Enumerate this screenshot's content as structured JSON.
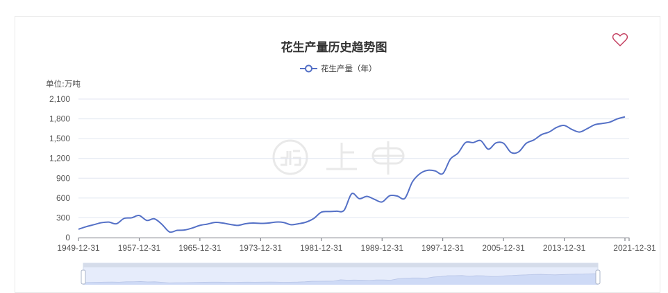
{
  "header": {
    "title": "花生产量历史趋势图",
    "favorite_icon": "heart-outline-icon"
  },
  "legend": {
    "label": "花生产量（年）",
    "color": "#5470c6"
  },
  "y_axis": {
    "unit_label": "单位:万吨"
  },
  "watermark": {
    "text": "上甲"
  },
  "chart_data": {
    "type": "line",
    "title": "花生产量历史趋势图",
    "xlabel": "",
    "ylabel": "单位:万吨",
    "ylim": [
      0,
      2100
    ],
    "yticks": [
      0,
      300,
      600,
      900,
      1200,
      1500,
      1800,
      2100
    ],
    "ytick_labels": [
      "0",
      "300",
      "600",
      "900",
      "1,200",
      "1,500",
      "1,800",
      "2,100"
    ],
    "xtick_labels": [
      "1949-12-31",
      "1957-12-31",
      "1965-12-31",
      "1973-12-31",
      "1981-12-31",
      "1989-12-31",
      "1997-12-31",
      "2005-12-31",
      "2013-12-31",
      "2021-12-31"
    ],
    "grid": true,
    "legend_position": "top-center",
    "series": [
      {
        "name": "花生产量（年）",
        "x": [
          "1949",
          "1950",
          "1951",
          "1952",
          "1953",
          "1954",
          "1955",
          "1956",
          "1957",
          "1958",
          "1959",
          "1960",
          "1961",
          "1962",
          "1963",
          "1964",
          "1965",
          "1966",
          "1967",
          "1968",
          "1969",
          "1970",
          "1971",
          "1972",
          "1973",
          "1974",
          "1975",
          "1976",
          "1977",
          "1978",
          "1979",
          "1980",
          "1981",
          "1982",
          "1983",
          "1984",
          "1985",
          "1986",
          "1987",
          "1988",
          "1989",
          "1990",
          "1991",
          "1992",
          "1993",
          "1994",
          "1995",
          "1996",
          "1997",
          "1998",
          "1999",
          "2000",
          "2001",
          "2002",
          "2003",
          "2004",
          "2005",
          "2006",
          "2007",
          "2008",
          "2009",
          "2010",
          "2011",
          "2012",
          "2013",
          "2014",
          "2015",
          "2016",
          "2017",
          "2018",
          "2019",
          "2020",
          "2021"
        ],
        "values": [
          127,
          165,
          195,
          225,
          235,
          210,
          290,
          300,
          335,
          260,
          285,
          200,
          85,
          110,
          115,
          145,
          185,
          205,
          230,
          220,
          200,
          185,
          210,
          220,
          215,
          220,
          235,
          230,
          195,
          210,
          235,
          290,
          385,
          395,
          400,
          415,
          665,
          590,
          625,
          580,
          540,
          635,
          630,
          595,
          845,
          970,
          1020,
          1010,
          970,
          1190,
          1280,
          1440,
          1440,
          1470,
          1340,
          1435,
          1430,
          1290,
          1300,
          1430,
          1480,
          1560,
          1600,
          1670,
          1700,
          1640,
          1600,
          1650,
          1710,
          1730,
          1750,
          1800,
          1830
        ]
      }
    ]
  }
}
